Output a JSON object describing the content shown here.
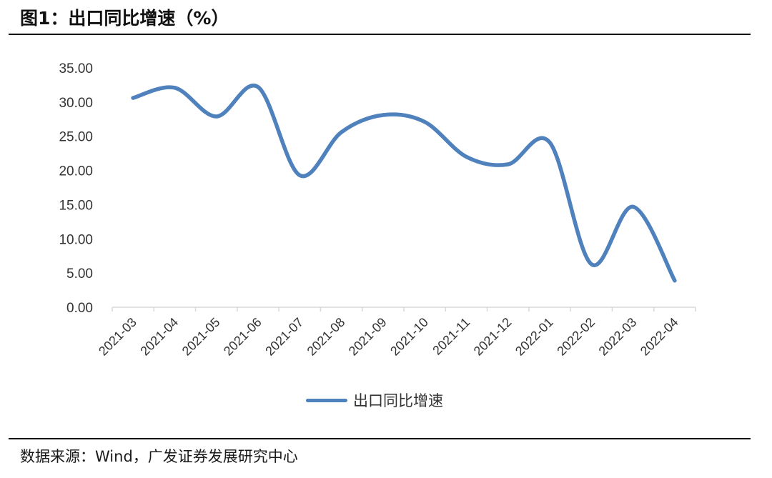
{
  "figure": {
    "title": "图1：出口同比增速（%）",
    "source": "数据来源：Wind，广发证券发展研究中心"
  },
  "chart_data": {
    "type": "line",
    "title": "图1：出口同比增速（%）",
    "xlabel": "",
    "ylabel": "",
    "categories": [
      "2021-03",
      "2021-04",
      "2021-05",
      "2021-06",
      "2021-07",
      "2021-08",
      "2021-09",
      "2021-10",
      "2021-11",
      "2021-12",
      "2022-01",
      "2022-02",
      "2022-03",
      "2022-04"
    ],
    "series": [
      {
        "name": "出口同比增速",
        "color": "#4f81bd",
        "values": [
          30.6,
          32.1,
          27.9,
          32.2,
          19.3,
          25.6,
          28.1,
          27.1,
          22.0,
          20.9,
          24.1,
          6.3,
          14.7,
          3.9
        ]
      }
    ],
    "yticks": [
      "0.00",
      "5.00",
      "10.00",
      "15.00",
      "20.00",
      "25.00",
      "30.00",
      "35.00"
    ],
    "ylim": [
      0,
      35
    ],
    "grid": false,
    "legend": "bottom-center",
    "smooth": true
  }
}
